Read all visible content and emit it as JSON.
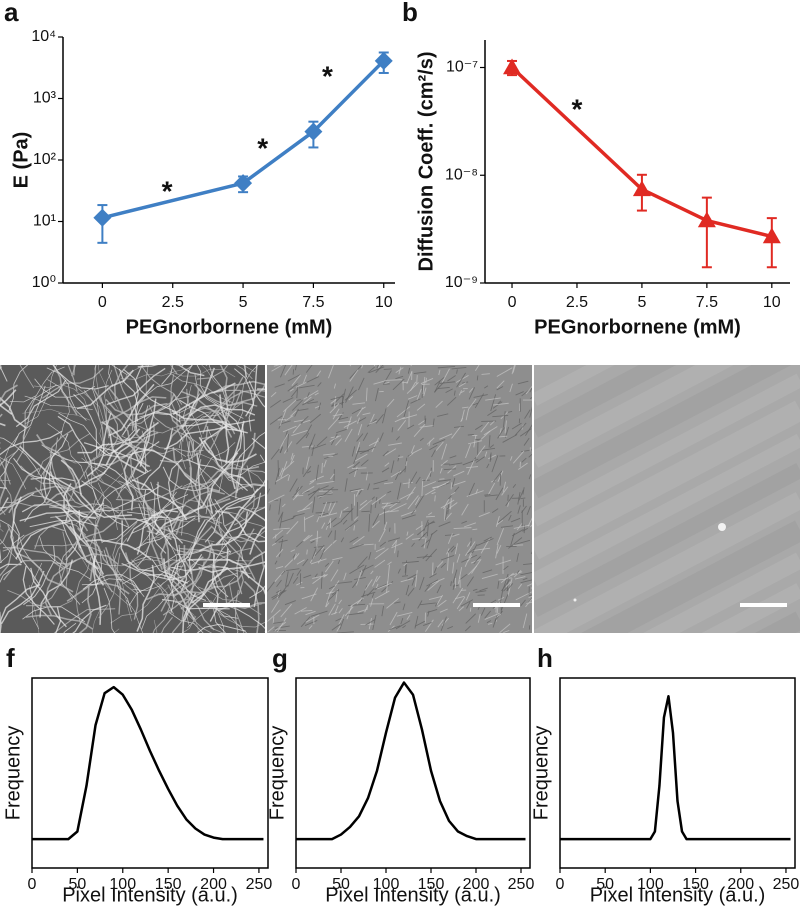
{
  "chart_data": [
    {
      "type": "line",
      "panel_label": "a",
      "xlabel": "PEGnorbornene (mM)",
      "ylabel": "E (Pa)",
      "x": [
        0,
        5,
        7.5,
        10
      ],
      "series": [
        {
          "color": "#3f7fc4",
          "marker": "diamond",
          "values": [
            11.5,
            42,
            290,
            4100
          ],
          "errors": [
            7,
            12,
            130,
            1500
          ]
        }
      ],
      "xlim": [
        -1.4,
        10.4
      ],
      "xticks": [
        0,
        2.5,
        5,
        7.5,
        10
      ],
      "ylim": [
        1,
        10000
      ],
      "log_y": true,
      "yticks": [
        {
          "value": 1,
          "label": "10⁰"
        },
        {
          "value": 10,
          "label": "10¹"
        },
        {
          "value": 100,
          "label": "10²"
        },
        {
          "value": 1000,
          "label": "10³"
        },
        {
          "value": 10000,
          "label": "10⁴"
        }
      ],
      "annotations": [
        {
          "text": "*",
          "x": 2.3,
          "y": 36
        },
        {
          "text": "*",
          "x": 5.7,
          "y": 180
        },
        {
          "text": "*",
          "x": 8.0,
          "y": 2700
        }
      ]
    },
    {
      "type": "line",
      "panel_label": "b",
      "xlabel": "PEGnorbornene (mM)",
      "ylabel": "Diffusion Coeff. (cm²/s)",
      "x": [
        0,
        5,
        7.5,
        10
      ],
      "series": [
        {
          "color": "#e02a23",
          "marker": "triangle",
          "values": [
            1e-07,
            7.4e-09,
            3.8e-09,
            2.7e-09
          ],
          "errors": [
            1.5e-08,
            2.7e-09,
            2.4e-09,
            1.3e-09
          ]
        }
      ],
      "xlim": [
        -1.04,
        10.7
      ],
      "xticks": [
        0,
        2.5,
        5,
        7.5,
        10
      ],
      "ylim": [
        1e-09,
        1.8e-07
      ],
      "log_y": true,
      "yticks": [
        {
          "value": 1e-09,
          "label": "10⁻⁹"
        },
        {
          "value": 1e-08,
          "label": "10⁻⁸"
        },
        {
          "value": 1e-07,
          "label": "10⁻⁷"
        }
      ],
      "annotations": [
        {
          "text": "*",
          "x": 2.5,
          "y": 4.5e-08
        }
      ]
    },
    {
      "type": "line",
      "panel_label": "f",
      "xlabel": "Pixel Intensity (a.u.)",
      "ylabel": "Frequency",
      "frame": true,
      "x": [
        0,
        40,
        50,
        60,
        70,
        80,
        90,
        100,
        110,
        120,
        130,
        140,
        150,
        160,
        170,
        180,
        190,
        200,
        210,
        255
      ],
      "series": [
        {
          "color": "#000000",
          "values": [
            0,
            0,
            0.05,
            0.35,
            0.75,
            0.96,
            1.0,
            0.95,
            0.85,
            0.72,
            0.58,
            0.45,
            0.33,
            0.22,
            0.13,
            0.07,
            0.03,
            0.01,
            0,
            0
          ]
        }
      ],
      "xlim": [
        0,
        260
      ],
      "xticks": [
        0,
        50,
        100,
        150,
        200,
        250
      ],
      "ylim": [
        -0.19,
        1.06
      ]
    },
    {
      "type": "line",
      "panel_label": "g",
      "xlabel": "Pixel Intensity (a.u.)",
      "ylabel": "Frequency",
      "frame": true,
      "x": [
        0,
        40,
        50,
        60,
        70,
        80,
        90,
        100,
        110,
        120,
        130,
        140,
        150,
        160,
        170,
        180,
        190,
        200,
        255
      ],
      "series": [
        {
          "color": "#000000",
          "values": [
            0,
            0,
            0.03,
            0.08,
            0.15,
            0.27,
            0.45,
            0.7,
            0.93,
            1.03,
            0.95,
            0.72,
            0.45,
            0.25,
            0.12,
            0.05,
            0.02,
            0,
            0
          ]
        }
      ],
      "xlim": [
        0,
        260
      ],
      "xticks": [
        0,
        50,
        100,
        150,
        200,
        250
      ],
      "ylim": [
        -0.19,
        1.06
      ]
    },
    {
      "type": "line",
      "panel_label": "h",
      "xlabel": "Pixel Intensity (a.u.)",
      "ylabel": "Frequency",
      "frame": true,
      "x": [
        0,
        100,
        105,
        110,
        115,
        120,
        125,
        130,
        135,
        140,
        255
      ],
      "series": [
        {
          "color": "#000000",
          "values": [
            0,
            0,
            0.05,
            0.35,
            0.8,
            0.94,
            0.7,
            0.25,
            0.05,
            0,
            0
          ]
        }
      ],
      "xlim": [
        0,
        260
      ],
      "xticks": [
        0,
        50,
        100,
        150,
        200,
        250
      ],
      "ylim": [
        -0.19,
        1.06
      ]
    }
  ]
}
